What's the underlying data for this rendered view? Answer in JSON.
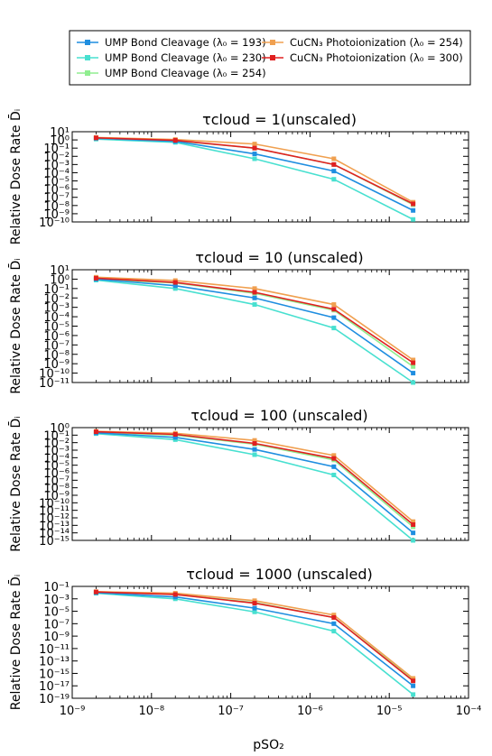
{
  "legend": {
    "placement": "top",
    "entries": [
      {
        "label": "UMP Bond Cleavage (λ₀ = 193)",
        "color": "#1f8ee0"
      },
      {
        "label": "UMP Bond Cleavage (λ₀ = 230)",
        "color": "#48e0d0"
      },
      {
        "label": "UMP Bond Cleavage (λ₀ = 254)",
        "color": "#90ee90"
      },
      {
        "label": "CuCN₃ Photoionization (λ₀ = 254)",
        "color": "#f0a050"
      },
      {
        "label": "CuCN₃ Photoionization (λ₀ = 300)",
        "color": "#e02020"
      }
    ]
  },
  "xlabel": "pSO₂",
  "chart_data": [
    {
      "type": "line",
      "title": "τcloud = 1(unscaled)",
      "ylabel": "Relative Dose Rate D̄ᵢ",
      "xscale": "log",
      "yscale": "log",
      "xlim": [
        1e-09,
        0.0001
      ],
      "ylim_exp": [
        -10,
        1
      ],
      "x": [
        2e-09,
        2e-08,
        2e-07,
        2e-06,
        2e-05
      ],
      "series": [
        {
          "name": "UMP Bond Cleavage (λ₀ = 193)",
          "log10_values": [
            0.2,
            -0.18,
            -1.7,
            -3.8,
            -8.6
          ]
        },
        {
          "name": "UMP Bond Cleavage (λ₀ = 230)",
          "log10_values": [
            0.1,
            -0.3,
            -2.3,
            -4.8,
            -9.7
          ]
        },
        {
          "name": "UMP Bond Cleavage (λ₀ = 254)",
          "log10_values": [
            0.2,
            -0.1,
            -1.0,
            -3.0,
            -7.9
          ]
        },
        {
          "name": "CuCN₃ Photoionization (λ₀ = 254)",
          "log10_values": [
            0.3,
            0.05,
            -0.5,
            -2.3,
            -7.6
          ]
        },
        {
          "name": "CuCN₃ Photoionization (λ₀ = 300)",
          "log10_values": [
            0.25,
            -0.05,
            -1.0,
            -3.0,
            -7.8
          ]
        }
      ],
      "xticks": [
        "",
        "",
        "",
        "",
        "",
        ""
      ],
      "yticks": [
        "10¹",
        "10⁰",
        "10⁻¹",
        "10⁻²",
        "10⁻³",
        "10⁻⁴",
        "10⁻⁵",
        "10⁻⁶",
        "10⁻⁷",
        "10⁻⁸",
        "10⁻⁹",
        "10⁻¹⁰"
      ]
    },
    {
      "type": "line",
      "title": "τcloud = 10 (unscaled)",
      "ylabel": "Relative Dose Rate D̄ᵢ",
      "xscale": "log",
      "yscale": "log",
      "xlim": [
        1e-09,
        0.0001
      ],
      "ylim_exp": [
        -11,
        1
      ],
      "x": [
        2e-09,
        2e-08,
        2e-07,
        2e-06,
        2e-05
      ],
      "series": [
        {
          "name": "UMP Bond Cleavage (λ₀ = 193)",
          "log10_values": [
            0.0,
            -0.7,
            -2.0,
            -4.1,
            -10.0
          ]
        },
        {
          "name": "UMP Bond Cleavage (λ₀ = 230)",
          "log10_values": [
            -0.1,
            -1.0,
            -2.7,
            -5.2,
            -11.0
          ]
        },
        {
          "name": "UMP Bond Cleavage (λ₀ = 254)",
          "log10_values": [
            0.0,
            -0.4,
            -1.5,
            -3.3,
            -9.3
          ]
        },
        {
          "name": "CuCN₃ Photoionization (λ₀ = 254)",
          "log10_values": [
            0.2,
            -0.15,
            -1.0,
            -2.7,
            -8.6
          ]
        },
        {
          "name": "CuCN₃ Photoionization (λ₀ = 300)",
          "log10_values": [
            0.1,
            -0.35,
            -1.4,
            -3.2,
            -8.9
          ]
        }
      ],
      "xticks": [
        "",
        "",
        "",
        "",
        "",
        ""
      ],
      "yticks": [
        "10¹",
        "10⁰",
        "10⁻¹",
        "10⁻²",
        "10⁻³",
        "10⁻⁴",
        "10⁻⁵",
        "10⁻⁶",
        "10⁻⁷",
        "10⁻⁸",
        "10⁻⁹",
        "10⁻¹⁰",
        "10⁻¹¹"
      ]
    },
    {
      "type": "line",
      "title": "τcloud = 100 (unscaled)",
      "ylabel": "Relative Dose Rate D̄ᵢ",
      "xscale": "log",
      "yscale": "log",
      "xlim": [
        1e-09,
        0.0001
      ],
      "ylim_exp": [
        -15,
        0
      ],
      "x": [
        2e-09,
        2e-08,
        2e-07,
        2e-06,
        2e-05
      ],
      "series": [
        {
          "name": "UMP Bond Cleavage (λ₀ = 193)",
          "log10_values": [
            -0.7,
            -1.3,
            -2.9,
            -5.2,
            -14.0
          ]
        },
        {
          "name": "UMP Bond Cleavage (λ₀ = 230)",
          "log10_values": [
            -0.8,
            -1.6,
            -3.6,
            -6.3,
            -15.0
          ]
        },
        {
          "name": "UMP Bond Cleavage (λ₀ = 254)",
          "log10_values": [
            -0.6,
            -1.0,
            -2.2,
            -4.3,
            -13.2
          ]
        },
        {
          "name": "CuCN₃ Photoionization (λ₀ = 254)",
          "log10_values": [
            -0.5,
            -0.75,
            -1.7,
            -3.7,
            -12.5
          ]
        },
        {
          "name": "CuCN₃ Photoionization (λ₀ = 300)",
          "log10_values": [
            -0.55,
            -0.9,
            -2.1,
            -4.1,
            -12.9
          ]
        }
      ],
      "xticks": [
        "",
        "",
        "",
        "",
        "",
        ""
      ],
      "yticks": [
        "10⁰",
        "10⁻¹",
        "10⁻²",
        "10⁻³",
        "10⁻⁴",
        "10⁻⁵",
        "10⁻⁶",
        "10⁻⁷",
        "10⁻⁸",
        "10⁻⁹",
        "10⁻¹⁰",
        "10⁻¹¹",
        "10⁻¹²",
        "10⁻¹³",
        "10⁻¹⁴",
        "10⁻¹⁵"
      ]
    },
    {
      "type": "line",
      "title": "τcloud = 1000 (unscaled)",
      "ylabel": "Relative Dose Rate D̄ᵢ",
      "xscale": "log",
      "yscale": "log",
      "xlim": [
        1e-09,
        0.0001
      ],
      "ylim_exp": [
        -19,
        -1
      ],
      "x": [
        2e-09,
        2e-08,
        2e-07,
        2e-06,
        2e-05
      ],
      "series": [
        {
          "name": "UMP Bond Cleavage (λ₀ = 193)",
          "log10_values": [
            -2.0,
            -2.7,
            -4.5,
            -7.0,
            -17.0
          ]
        },
        {
          "name": "UMP Bond Cleavage (λ₀ = 230)",
          "log10_values": [
            -2.1,
            -3.0,
            -5.1,
            -8.2,
            -18.4
          ]
        },
        {
          "name": "UMP Bond Cleavage (λ₀ = 254)",
          "log10_values": [
            -1.9,
            -2.3,
            -3.6,
            -6.0,
            -16.0
          ]
        },
        {
          "name": "CuCN₃ Photoionization (λ₀ = 254)",
          "log10_values": [
            -1.85,
            -2.1,
            -3.3,
            -5.6,
            -15.8
          ]
        },
        {
          "name": "CuCN₃ Photoionization (λ₀ = 300)",
          "log10_values": [
            -1.9,
            -2.3,
            -3.7,
            -6.0,
            -16.2
          ]
        }
      ],
      "xticks": [
        "10⁻⁹",
        "10⁻⁸",
        "10⁻⁷",
        "10⁻⁶",
        "10⁻⁵",
        "10⁻⁴"
      ],
      "yticks": [
        "10⁻¹",
        "10⁻³",
        "10⁻⁵",
        "10⁻⁷",
        "10⁻⁹",
        "10⁻¹¹",
        "10⁻¹³",
        "10⁻¹⁵",
        "10⁻¹⁷",
        "10⁻¹⁹"
      ]
    }
  ]
}
